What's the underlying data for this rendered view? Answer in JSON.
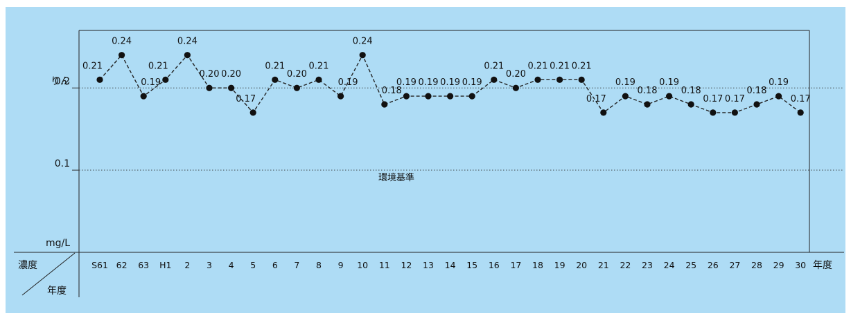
{
  "chart_data": {
    "type": "line",
    "y_label_top": "りん",
    "y_unit": "mg/L",
    "x_unit": "年度",
    "corner_row_label": "濃度",
    "corner_col_label": "年度",
    "ylim": [
      0,
      0.27
    ],
    "y_ticks": [
      {
        "value": 0.2,
        "label": "0.2"
      },
      {
        "value": 0.1,
        "label": "0.1"
      }
    ],
    "reference_line": {
      "value": 0.1,
      "label": "環境基準"
    },
    "categories": [
      "S61",
      "62",
      "63",
      "H1",
      "2",
      "3",
      "4",
      "5",
      "6",
      "7",
      "8",
      "9",
      "10",
      "11",
      "12",
      "13",
      "14",
      "15",
      "16",
      "17",
      "18",
      "19",
      "20",
      "21",
      "22",
      "23",
      "24",
      "25",
      "26",
      "27",
      "28",
      "29",
      "30"
    ],
    "values": [
      0.21,
      0.24,
      0.19,
      0.21,
      0.24,
      0.2,
      0.2,
      0.17,
      0.21,
      0.2,
      0.21,
      0.19,
      0.24,
      0.18,
      0.19,
      0.19,
      0.19,
      0.19,
      0.21,
      0.2,
      0.21,
      0.21,
      0.21,
      0.17,
      0.19,
      0.18,
      0.19,
      0.18,
      0.17,
      0.17,
      0.18,
      0.19,
      0.17
    ],
    "value_labels": [
      "0.21",
      "0.24",
      "0.19",
      "0.21",
      "0.24",
      "0.20",
      "0.20",
      "0.17",
      "0.21",
      "0.20",
      "0.21",
      "0.19",
      "0.24",
      "0.18",
      "0.19",
      "0.19",
      "0.19",
      "0.19",
      "0.21",
      "0.20",
      "0.21",
      "0.21",
      "0.21",
      "0.17",
      "0.19",
      "0.18",
      "0.19",
      "0.18",
      "0.17",
      "0.17",
      "0.18",
      "0.19",
      "0.17"
    ],
    "label_positions": [
      "left",
      "above",
      "right",
      "left",
      "above",
      "above",
      "above",
      "left",
      "above",
      "above",
      "above",
      "right",
      "above",
      "right",
      "above",
      "above",
      "above",
      "above",
      "above",
      "above",
      "above",
      "above",
      "above",
      "left",
      "above",
      "above",
      "above",
      "above",
      "above",
      "above",
      "above",
      "above",
      "above"
    ],
    "colors": {
      "panel": "#aedcf5",
      "line": "#222222",
      "marker": "#111111",
      "grid": "#333333"
    }
  }
}
